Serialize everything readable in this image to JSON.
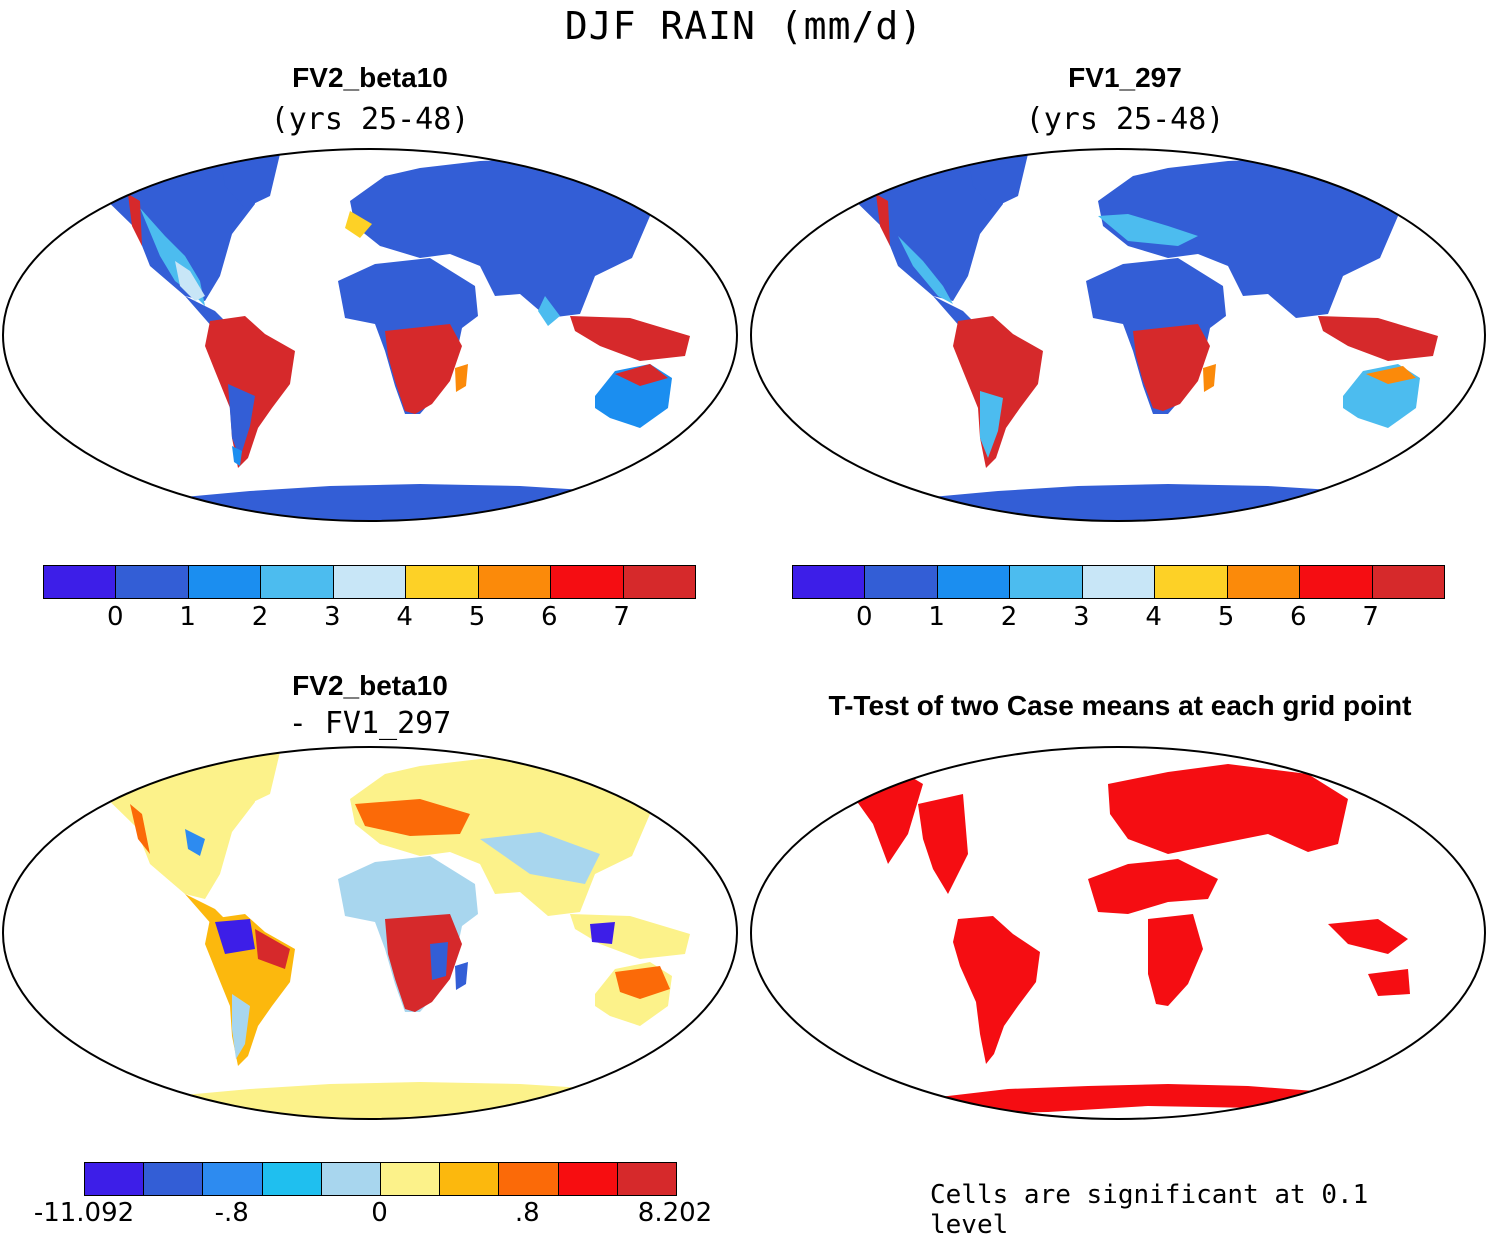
{
  "figure_title": "DJF RAIN (mm/d)",
  "panels": {
    "top_left": {
      "title": "FV2_beta10",
      "subtitle": "(yrs 25-48)"
    },
    "top_right": {
      "title": "FV1_297",
      "subtitle": "(yrs 25-48)"
    },
    "bottom_left": {
      "title": "FV2_beta10",
      "subtitle": "- FV1_297"
    },
    "bottom_right": {
      "title": "T-Test of two Case means at each grid point",
      "note": "Cells are significant at 0.1 level"
    }
  },
  "colorbars": {
    "rain": {
      "colors": [
        "#3d1ee8",
        "#335ed6",
        "#1b8ef0",
        "#4cbcef",
        "#c8e6f7",
        "#fdd126",
        "#fb8a0a",
        "#f50d12",
        "#d6292b"
      ],
      "labels": [
        "0",
        "1",
        "2",
        "3",
        "4",
        "5",
        "6",
        "7"
      ]
    },
    "diff": {
      "colors": [
        "#3d1ee8",
        "#335ed6",
        "#2d8bf0",
        "#1fbfef",
        "#a8d6ee",
        "#fcf28a",
        "#fcb80d",
        "#fb6a08",
        "#f70d10",
        "#d6292b"
      ],
      "labels": [
        "-11.092",
        "-.8",
        "0",
        ".8",
        "8.202"
      ]
    }
  },
  "colors": {
    "land_low": "#335ed6",
    "land_high": "#d6292b",
    "diff_land": "#fcf28a",
    "significant": "#f50d12"
  }
}
